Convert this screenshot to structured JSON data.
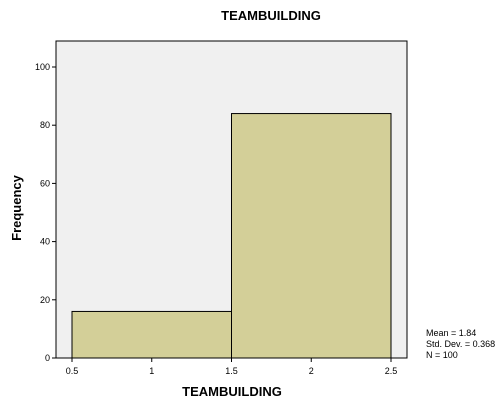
{
  "chart_data": {
    "type": "histogram",
    "title": "TEAMBUILDING",
    "xlabel": "TEAMBUILDING",
    "ylabel": "Frequency",
    "bins": [
      {
        "x0": 0.5,
        "x1": 1.5,
        "value": 16
      },
      {
        "x0": 1.5,
        "x1": 2.5,
        "value": 84
      }
    ],
    "xlim": [
      0.5,
      2.5
    ],
    "ylim": [
      0,
      100
    ],
    "x_ticks": [
      0.5,
      1,
      1.5,
      2,
      2.5
    ],
    "x_tick_labels": [
      "0.5",
      "1",
      "1.5",
      "2",
      "2.5"
    ],
    "y_ticks": [
      0,
      20,
      40,
      60,
      80,
      100
    ],
    "y_tick_labels": [
      "0",
      "20",
      "40",
      "60",
      "80",
      "100"
    ],
    "grid": false,
    "colors": {
      "plot_background": "#f0f0f0",
      "bar_fill": "#d3cf98",
      "bar_stroke": "#000000"
    },
    "stats": {
      "mean": "Mean = 1.84",
      "std_dev": "Std. Dev. = 0.368",
      "n": "N = 100"
    }
  }
}
